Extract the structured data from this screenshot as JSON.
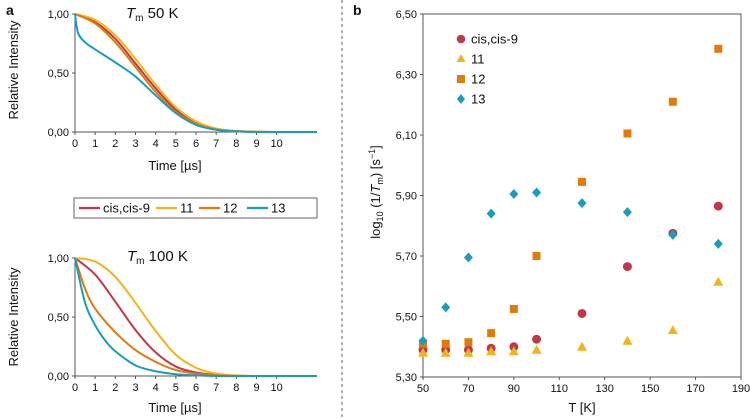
{
  "panel_labels": {
    "a": "a",
    "b": "b"
  },
  "chart_data": [
    {
      "id": "decay_50K",
      "type": "line",
      "title_main": "T",
      "title_sub": "m",
      "title_rest": " 50 K",
      "xlabel": "Time [µs]",
      "ylabel": "Relative Intensity",
      "xlim": [
        0,
        12
      ],
      "ylim": [
        0,
        1
      ],
      "xticks": [
        "0",
        "1",
        "2",
        "3",
        "4",
        "5",
        "6",
        "7",
        "8",
        "9",
        "10"
      ],
      "yticks": [
        "0,00",
        "0,50",
        "1,00"
      ],
      "series": [
        {
          "name": "cis,cis-9",
          "color": "#c0394b",
          "x": [
            0,
            1,
            2,
            3,
            4,
            5,
            6,
            7,
            8,
            9,
            10,
            11,
            12
          ],
          "values": [
            1.0,
            0.93,
            0.79,
            0.58,
            0.37,
            0.19,
            0.08,
            0.025,
            0.007,
            0.002,
            0.0,
            0.0,
            0.0
          ]
        },
        {
          "name": "11",
          "color": "#f2b418",
          "x": [
            0,
            1,
            2,
            3,
            4,
            5,
            6,
            7,
            8,
            9,
            10,
            11,
            12
          ],
          "values": [
            1.0,
            0.95,
            0.82,
            0.62,
            0.4,
            0.21,
            0.09,
            0.03,
            0.008,
            0.002,
            0.0,
            0.0,
            0.0
          ]
        },
        {
          "name": "12",
          "color": "#e07b0a",
          "x": [
            0,
            1,
            2,
            3,
            4,
            5,
            6,
            7,
            8,
            9,
            10,
            11,
            12
          ],
          "values": [
            1.0,
            0.92,
            0.76,
            0.55,
            0.34,
            0.17,
            0.07,
            0.02,
            0.006,
            0.001,
            0.0,
            0.0,
            0.0
          ]
        },
        {
          "name": "13",
          "color": "#1a9dbd",
          "x": [
            0,
            0.15,
            0.5,
            1,
            2,
            3,
            4,
            5,
            6,
            7,
            8,
            9,
            10,
            11,
            12
          ],
          "values": [
            1.0,
            0.84,
            0.76,
            0.7,
            0.59,
            0.47,
            0.31,
            0.16,
            0.06,
            0.02,
            0.005,
            0.0,
            0.0,
            0.0,
            0.0
          ]
        }
      ]
    },
    {
      "id": "decay_100K",
      "type": "line",
      "title_main": "T",
      "title_sub": "m",
      "title_rest": " 100 K",
      "xlabel": "Time [µs]",
      "ylabel": "Relative Intensity",
      "xlim": [
        0,
        12
      ],
      "ylim": [
        0,
        1
      ],
      "xticks": [
        "0",
        "1",
        "2",
        "3",
        "4",
        "5",
        "6",
        "7",
        "8",
        "9",
        "10"
      ],
      "yticks": [
        "0,00",
        "0,50",
        "1,00"
      ],
      "series": [
        {
          "name": "cis,cis-9",
          "color": "#c0394b",
          "x": [
            0,
            1,
            2,
            3,
            4,
            5,
            6,
            7,
            8,
            9,
            10,
            11,
            12
          ],
          "values": [
            1.0,
            0.86,
            0.63,
            0.39,
            0.2,
            0.08,
            0.03,
            0.01,
            0.003,
            0.0,
            0.0,
            0.0,
            0.0
          ]
        },
        {
          "name": "11",
          "color": "#f2b418",
          "x": [
            0,
            1,
            2,
            3,
            4,
            5,
            6,
            7,
            8,
            9,
            10,
            11,
            12
          ],
          "values": [
            1.0,
            0.97,
            0.84,
            0.62,
            0.38,
            0.18,
            0.07,
            0.02,
            0.005,
            0.0,
            0.0,
            0.0,
            0.0
          ]
        },
        {
          "name": "12",
          "color": "#e07b0a",
          "x": [
            0,
            0.5,
            1,
            2,
            3,
            4,
            5,
            6,
            7,
            8,
            9,
            10,
            11,
            12
          ],
          "values": [
            1.0,
            0.74,
            0.57,
            0.37,
            0.22,
            0.12,
            0.05,
            0.02,
            0.006,
            0.0,
            0.0,
            0.0,
            0.0,
            0.0
          ]
        },
        {
          "name": "13",
          "color": "#1a9dbd",
          "x": [
            0,
            0.5,
            1,
            1.5,
            2,
            3,
            4,
            5,
            6,
            7,
            8,
            9,
            10,
            11,
            12
          ],
          "values": [
            1.0,
            0.62,
            0.43,
            0.3,
            0.21,
            0.09,
            0.04,
            0.015,
            0.005,
            0.0,
            0.0,
            0.0,
            0.0,
            0.0,
            0.0
          ]
        }
      ]
    },
    {
      "id": "log_rate_vs_T",
      "type": "scatter",
      "xlabel": "T [K]",
      "ylabel_pre": "log",
      "ylabel_sub": "10",
      "ylabel_mid": " (1/",
      "ylabel_T": "T",
      "ylabel_Tsub": "m",
      "ylabel_post": ") [s",
      "ylabel_sup": "−1",
      "ylabel_end": "]",
      "xlim": [
        50,
        190
      ],
      "ylim": [
        5.3,
        6.5
      ],
      "xticks": [
        "50",
        "70",
        "90",
        "110",
        "130",
        "150",
        "170",
        "190"
      ],
      "yticks": [
        "5,30",
        "5,50",
        "5,70",
        "5,90",
        "6,10",
        "6,30",
        "6,50"
      ],
      "series": [
        {
          "name": "cis,cis-9",
          "marker": "circle",
          "color": "#c0394b",
          "x": [
            50,
            60,
            70,
            80,
            90,
            100,
            120,
            140,
            160,
            180
          ],
          "values": [
            5.39,
            5.39,
            5.39,
            5.395,
            5.4,
            5.425,
            5.51,
            5.665,
            5.775,
            5.865
          ]
        },
        {
          "name": "11",
          "marker": "triangle",
          "color": "#f2b418",
          "x": [
            50,
            60,
            70,
            80,
            90,
            100,
            120,
            140,
            160,
            180
          ],
          "values": [
            5.38,
            5.38,
            5.38,
            5.385,
            5.385,
            5.39,
            5.4,
            5.42,
            5.455,
            5.615
          ]
        },
        {
          "name": "12",
          "marker": "square",
          "color": "#e07b0a",
          "x": [
            50,
            60,
            70,
            80,
            90,
            100,
            120,
            140,
            160,
            180
          ],
          "values": [
            5.41,
            5.41,
            5.415,
            5.445,
            5.525,
            5.7,
            5.945,
            6.105,
            6.21,
            6.385
          ]
        },
        {
          "name": "13",
          "marker": "diamond",
          "color": "#1a9dbd",
          "x": [
            50,
            60,
            70,
            80,
            90,
            100,
            120,
            140,
            160,
            180
          ],
          "values": [
            5.42,
            5.53,
            5.695,
            5.84,
            5.905,
            5.91,
            5.875,
            5.845,
            5.77,
            5.74
          ]
        }
      ]
    }
  ],
  "legend_a": [
    "cis,cis-9",
    "11",
    "12",
    "13"
  ],
  "legend_b": [
    "cis,cis-9",
    "11",
    "12",
    "13"
  ]
}
